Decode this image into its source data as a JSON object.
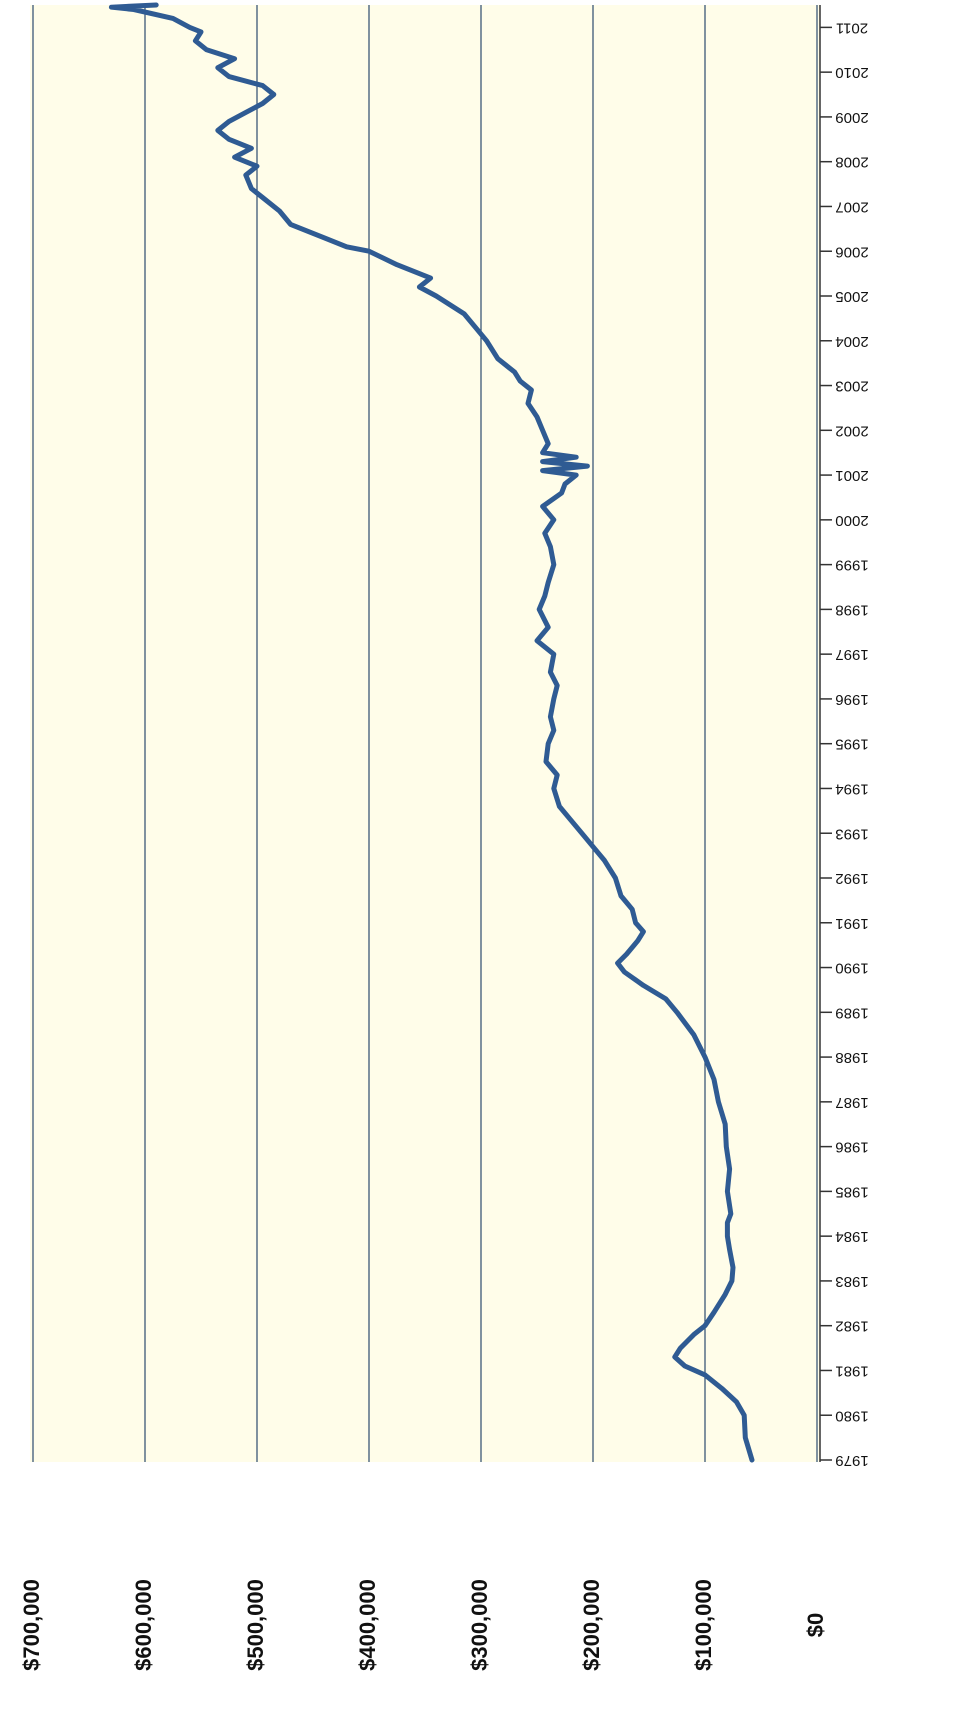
{
  "chart_data": {
    "type": "line",
    "color": "#2f5b93",
    "grid": true,
    "orientation": "rotated",
    "x": [
      1979.0,
      1979.5,
      1980.0,
      1980.3,
      1980.6,
      1980.9,
      1981.1,
      1981.3,
      1981.5,
      1981.8,
      1982.0,
      1982.3,
      1982.7,
      1983.0,
      1983.3,
      1983.7,
      1984.0,
      1984.3,
      1984.5,
      1985.0,
      1985.5,
      1986.0,
      1986.5,
      1987.0,
      1987.5,
      1988.0,
      1988.5,
      1989.0,
      1989.3,
      1989.6,
      1989.9,
      1990.1,
      1990.3,
      1990.6,
      1990.8,
      1991.0,
      1991.3,
      1991.6,
      1992.0,
      1992.4,
      1992.7,
      1993.0,
      1993.3,
      1993.6,
      1994.0,
      1994.3,
      1994.6,
      1995.0,
      1995.3,
      1995.6,
      1996.0,
      1996.3,
      1996.6,
      1997.0,
      1997.3,
      1997.6,
      1998.0,
      1998.3,
      1998.6,
      1999.0,
      1999.4,
      1999.7,
      2000.0,
      2000.3,
      2000.6,
      2000.8,
      2001.0,
      2001.1,
      2001.2,
      2001.3,
      2001.4,
      2001.5,
      2001.7,
      2002.0,
      2002.3,
      2002.6,
      2002.9,
      2003.1,
      2003.3,
      2003.6,
      2004.0,
      2004.3,
      2004.6,
      2005.0,
      2005.2,
      2005.4,
      2005.7,
      2006.0,
      2006.1,
      2006.3,
      2006.6,
      2006.9,
      2007.2,
      2007.4,
      2007.7,
      2007.9,
      2008.1,
      2008.3,
      2008.5,
      2008.7,
      2008.9,
      2009.1,
      2009.3,
      2009.5,
      2009.7,
      2009.9,
      2010.1,
      2010.3,
      2010.5,
      2010.7,
      2010.9,
      2011.0,
      2011.2,
      2011.4,
      2011.45,
      2011.5
    ],
    "values": [
      58000,
      64000,
      65000,
      72000,
      85000,
      100000,
      118000,
      127000,
      122000,
      110000,
      100000,
      92000,
      82000,
      76000,
      75000,
      78000,
      80000,
      80000,
      77000,
      80000,
      78000,
      81000,
      82000,
      88000,
      92000,
      100000,
      110000,
      125000,
      135000,
      155000,
      172000,
      178000,
      170000,
      160000,
      155000,
      162000,
      165000,
      175000,
      180000,
      190000,
      200000,
      210000,
      220000,
      230000,
      235000,
      232000,
      242000,
      240000,
      235000,
      238000,
      235000,
      232000,
      238000,
      235000,
      250000,
      240000,
      248000,
      243000,
      240000,
      235000,
      238000,
      243000,
      235000,
      245000,
      228000,
      225000,
      215000,
      245000,
      205000,
      245000,
      215000,
      245000,
      240000,
      245000,
      250000,
      258000,
      255000,
      265000,
      270000,
      285000,
      295000,
      305000,
      315000,
      340000,
      355000,
      345000,
      375000,
      400000,
      420000,
      440000,
      470000,
      480000,
      495000,
      505000,
      510000,
      500000,
      520000,
      505000,
      525000,
      535000,
      525000,
      510000,
      495000,
      485000,
      495000,
      525000,
      535000,
      520000,
      545000,
      555000,
      550000,
      560000,
      575000,
      610000,
      630000,
      590000
    ],
    "xlim": [
      1979,
      2011.5
    ],
    "xticks": [
      1979,
      1980,
      1981,
      1982,
      1983,
      1984,
      1985,
      1986,
      1987,
      1988,
      1989,
      1990,
      1991,
      1992,
      1993,
      1994,
      1995,
      1996,
      1997,
      1998,
      1999,
      2000,
      2001,
      2002,
      2003,
      2004,
      2005,
      2006,
      2007,
      2008,
      2009,
      2010,
      2011
    ],
    "ylim": [
      0,
      700000
    ],
    "yticks": [
      {
        "value": 0,
        "label": "$0"
      },
      {
        "value": 100000,
        "label": "$100,000"
      },
      {
        "value": 200000,
        "label": "$200,000"
      },
      {
        "value": 300000,
        "label": "$300,000"
      },
      {
        "value": 400000,
        "label": "$400,000"
      },
      {
        "value": 500000,
        "label": "$500,000"
      },
      {
        "value": 600000,
        "label": "$600,000"
      },
      {
        "value": 700000,
        "label": "$700,000"
      }
    ]
  }
}
